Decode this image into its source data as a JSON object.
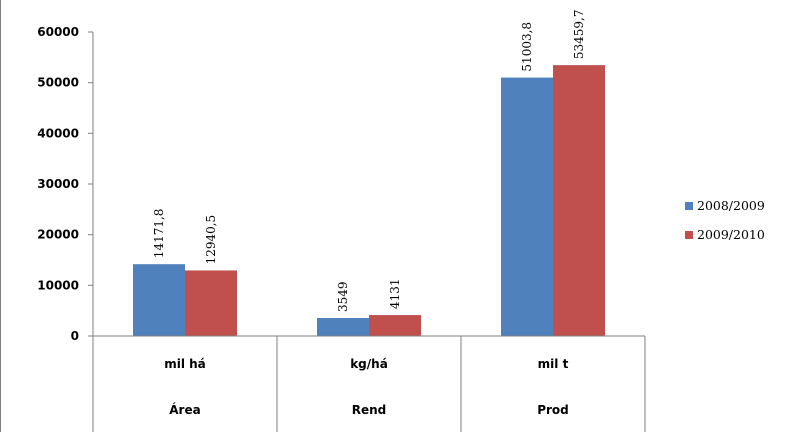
{
  "chart_data": {
    "type": "bar",
    "title": "",
    "xlabel": "",
    "ylabel": "",
    "ylim": [
      0,
      60000
    ],
    "yticks": [
      "0",
      "10000",
      "20000",
      "30000",
      "40000",
      "50000",
      "60000"
    ],
    "categories": [
      {
        "unit": "mil há",
        "name": "Área"
      },
      {
        "unit": "kg/há",
        "name": "Rend"
      },
      {
        "unit": "mil t",
        "name": "Prod"
      }
    ],
    "series": [
      {
        "name": "2008/2009",
        "color": "#4F81BD",
        "values": [
          14171.8,
          3549,
          51003.8
        ],
        "labels": [
          "14171,8",
          "3549",
          "51003,8"
        ]
      },
      {
        "name": "2009/2010",
        "color": "#C0504D",
        "values": [
          12940.5,
          4131,
          53459.7
        ],
        "labels": [
          "12940,5",
          "4131",
          "53459,7"
        ]
      }
    ],
    "grid": false,
    "legend_position": "right"
  }
}
